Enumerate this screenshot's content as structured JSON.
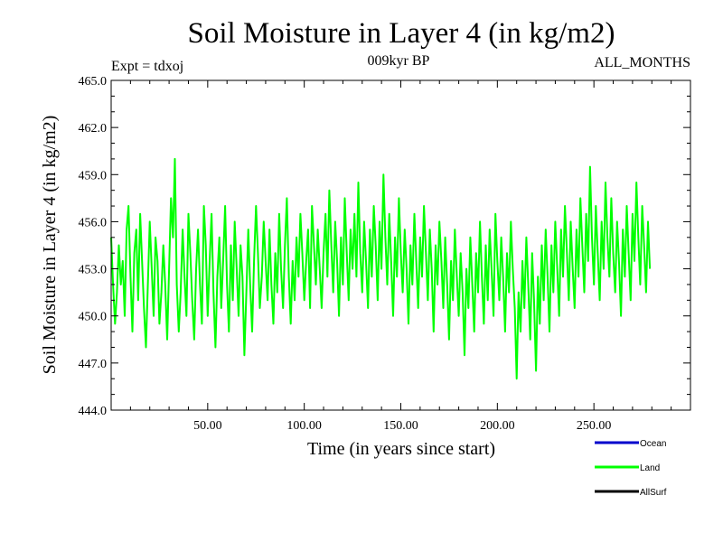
{
  "chart_data": {
    "type": "line",
    "title": "Soil Moisture in Layer 4 (in kg/m2)",
    "subtitle_left": "Expt = tdxoj",
    "subtitle_center": "009kyr BP",
    "subtitle_right": "ALL_MONTHS",
    "xlabel": "Time (in years since start)",
    "ylabel": "Soil Moisture in Layer 4 (in kg/m2)",
    "xlim": [
      0,
      300
    ],
    "ylim": [
      444.0,
      465.0
    ],
    "x_ticks": [
      50,
      100,
      150,
      200,
      250
    ],
    "x_tick_labels": [
      "50.00",
      "100.00",
      "150.00",
      "200.00",
      "250.00"
    ],
    "y_ticks": [
      444,
      447,
      450,
      453,
      456,
      459,
      462,
      465
    ],
    "y_tick_labels": [
      "444.0",
      "447.0",
      "450.0",
      "453.0",
      "456.0",
      "459.0",
      "462.0",
      "465.0"
    ],
    "legend": [
      {
        "name": "Ocean",
        "color": "#0000cc"
      },
      {
        "name": "Land",
        "color": "#00ff00"
      },
      {
        "name": "AllSurf",
        "color": "#000000"
      }
    ],
    "legend_position": "bottom-right",
    "series": [
      {
        "name": "Land",
        "color": "#00ff00",
        "x_start": 0,
        "x_step": 1,
        "values": [
          455.0,
          452.0,
          449.5,
          451.5,
          454.5,
          452.0,
          453.5,
          450.0,
          455.5,
          457.0,
          452.5,
          449.0,
          454.0,
          455.5,
          451.0,
          456.5,
          453.5,
          450.5,
          448.0,
          452.0,
          456.0,
          453.0,
          450.0,
          455.0,
          453.5,
          449.5,
          451.5,
          454.5,
          452.0,
          448.5,
          453.0,
          457.5,
          455.0,
          460.0,
          452.0,
          449.0,
          451.5,
          455.5,
          452.5,
          450.0,
          456.5,
          454.0,
          451.0,
          448.5,
          453.0,
          455.5,
          452.0,
          449.5,
          457.0,
          454.5,
          450.0,
          453.5,
          456.5,
          451.5,
          448.0,
          452.5,
          455.0,
          450.5,
          453.5,
          457.0,
          452.0,
          449.0,
          454.5,
          451.0,
          456.0,
          453.0,
          450.0,
          454.5,
          452.5,
          447.5,
          451.5,
          455.5,
          452.0,
          449.0,
          453.5,
          457.0,
          454.0,
          450.5,
          452.5,
          456.0,
          453.5,
          451.0,
          455.5,
          452.0,
          449.5,
          454.0,
          451.5,
          456.5,
          453.0,
          450.5,
          454.5,
          457.5,
          452.5,
          449.5,
          453.5,
          451.0,
          455.0,
          452.5,
          456.5,
          454.0,
          451.0,
          453.5,
          455.5,
          450.5,
          457.0,
          454.5,
          452.0,
          455.5,
          453.0,
          450.5,
          454.0,
          456.5,
          452.5,
          458.0,
          454.5,
          451.5,
          456.0,
          453.5,
          450.0,
          455.0,
          452.0,
          457.5,
          454.0,
          451.0,
          455.5,
          453.0,
          456.5,
          452.5,
          458.5,
          454.0,
          451.5,
          456.0,
          453.5,
          450.5,
          455.5,
          452.5,
          457.0,
          454.5,
          451.0,
          456.0,
          453.0,
          459.0,
          455.0,
          452.0,
          456.5,
          453.5,
          450.0,
          455.0,
          452.5,
          457.5,
          454.0,
          451.5,
          455.5,
          453.0,
          449.5,
          454.5,
          452.0,
          456.5,
          453.5,
          450.5,
          455.0,
          452.5,
          457.0,
          454.0,
          451.0,
          455.5,
          453.0,
          449.0,
          454.5,
          452.0,
          456.0,
          453.5,
          450.5,
          455.0,
          452.0,
          448.5,
          453.5,
          451.0,
          455.5,
          452.5,
          450.0,
          454.0,
          451.5,
          447.5,
          453.0,
          450.5,
          455.0,
          452.0,
          449.0,
          454.0,
          451.5,
          456.0,
          452.5,
          449.5,
          454.5,
          451.0,
          455.5,
          453.0,
          450.0,
          456.5,
          453.5,
          451.0,
          455.0,
          452.5,
          449.0,
          454.0,
          451.5,
          456.0,
          453.0,
          450.5,
          446.0,
          451.5,
          449.0,
          453.5,
          450.5,
          455.0,
          452.0,
          448.5,
          454.0,
          451.0,
          446.5,
          452.5,
          449.5,
          454.5,
          451.0,
          455.5,
          452.5,
          449.0,
          454.5,
          451.5,
          456.0,
          453.0,
          450.0,
          455.5,
          452.5,
          457.0,
          454.0,
          451.0,
          456.0,
          453.0,
          450.5,
          455.5,
          452.5,
          457.5,
          454.5,
          451.5,
          456.5,
          453.5,
          459.5,
          455.0,
          452.0,
          457.0,
          454.0,
          451.0,
          456.0,
          453.0,
          458.5,
          455.0,
          452.5,
          457.5,
          454.0,
          451.5,
          456.0,
          453.5,
          450.0,
          455.5,
          452.5,
          457.0,
          454.0,
          451.0,
          456.5,
          453.5,
          458.5,
          455.0,
          452.0,
          457.0,
          454.5,
          451.5,
          456.0,
          453.0
        ]
      }
    ]
  }
}
